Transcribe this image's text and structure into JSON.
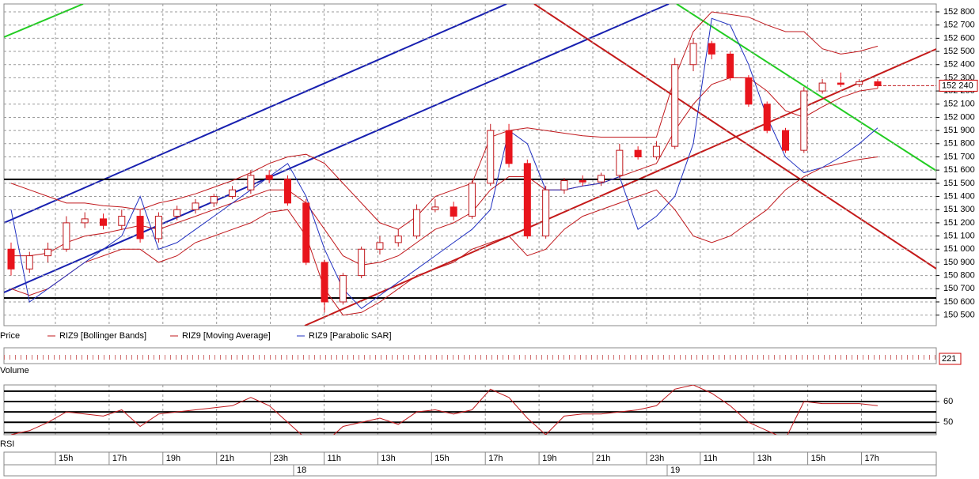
{
  "chart_data": [
    {
      "type": "candlestick",
      "title": "Price",
      "indicators": [
        "RIZ9 [Bollinger Bands]",
        "RIZ9 [Moving Average]",
        "RIZ9 [Parabolic SAR]"
      ],
      "categories": [
        null,
        null,
        null,
        null,
        null,
        null,
        null,
        null,
        null,
        null,
        null,
        null,
        null,
        null,
        null,
        null,
        null,
        null,
        null,
        null,
        null,
        null,
        null,
        null,
        null,
        null,
        null,
        null,
        null,
        null,
        null,
        null,
        null,
        null,
        null,
        null,
        null,
        null,
        null,
        null,
        null,
        null,
        null,
        null,
        null,
        null,
        null,
        null
      ],
      "open": [
        151000,
        150850,
        150950,
        151000,
        151200,
        151230,
        151180,
        151250,
        151080,
        151250,
        151300,
        151350,
        151400,
        151450,
        151560,
        151530,
        151350,
        150900,
        150600,
        150800,
        151000,
        151050,
        151100,
        151300,
        151320,
        151250,
        151500,
        151900,
        151650,
        151100,
        151450,
        151520,
        151510,
        151560,
        151750,
        151700,
        151780,
        152400,
        152560,
        152480,
        152300,
        152100,
        151900,
        151750,
        152200,
        152260,
        152250,
        152270
      ],
      "high": [
        151050,
        150980,
        151050,
        151250,
        151280,
        151270,
        151300,
        151300,
        151280,
        151330,
        151380,
        151420,
        151480,
        151600,
        151600,
        151560,
        151380,
        150920,
        150820,
        151020,
        151100,
        151150,
        151340,
        151380,
        151360,
        151520,
        151950,
        151950,
        151680,
        151480,
        151540,
        151560,
        151580,
        151800,
        151780,
        151820,
        152450,
        152600,
        152580,
        152500,
        152320,
        152120,
        151920,
        152230,
        152290,
        152340,
        152290,
        152290
      ],
      "low": [
        150800,
        150820,
        150900,
        150980,
        151160,
        151150,
        151150,
        151050,
        151050,
        151220,
        151270,
        151320,
        151380,
        151420,
        151500,
        151330,
        150880,
        150520,
        150580,
        150780,
        150960,
        151020,
        151080,
        151280,
        151220,
        151230,
        151480,
        151620,
        151080,
        151080,
        151420,
        151480,
        151480,
        151540,
        151680,
        151680,
        151760,
        152350,
        152440,
        152280,
        152080,
        151880,
        151730,
        151730,
        152180,
        152230,
        152230,
        152220
      ],
      "close": [
        150850,
        150950,
        151000,
        151200,
        151230,
        151180,
        151250,
        151080,
        151250,
        151300,
        151350,
        151400,
        151450,
        151560,
        151530,
        151350,
        150900,
        150600,
        150800,
        151000,
        151050,
        151100,
        151300,
        151320,
        151250,
        151500,
        151900,
        151650,
        151100,
        151450,
        151520,
        151510,
        151560,
        151750,
        151700,
        151780,
        152400,
        152560,
        152480,
        152300,
        152100,
        151900,
        151750,
        152200,
        152260,
        152250,
        152270,
        152240
      ],
      "bb_upper": [
        151500,
        151450,
        151400,
        151350,
        151350,
        151330,
        151320,
        151300,
        151350,
        151380,
        151420,
        151470,
        151520,
        151580,
        151650,
        151700,
        151720,
        151650,
        151500,
        151350,
        151200,
        151150,
        151250,
        151400,
        151450,
        151500,
        151850,
        151900,
        151920,
        151900,
        151880,
        151860,
        151850,
        151850,
        151850,
        151850,
        152300,
        152650,
        152800,
        152780,
        152760,
        152700,
        152650,
        152650,
        152520,
        152480,
        152500,
        152540
      ],
      "bb_lower": [
        150700,
        150650,
        150700,
        150800,
        150900,
        150950,
        151000,
        151000,
        150900,
        150950,
        151050,
        151100,
        151150,
        151200,
        151280,
        151300,
        151100,
        150700,
        150500,
        150520,
        150600,
        150700,
        150800,
        150850,
        150900,
        151000,
        151050,
        151100,
        150950,
        151000,
        151150,
        151250,
        151300,
        151350,
        151400,
        151450,
        151300,
        151100,
        151050,
        151100,
        151200,
        151300,
        151450,
        151550,
        151620,
        151650,
        151680,
        151700
      ],
      "ma": [
        150950,
        150950,
        150970,
        151050,
        151100,
        151120,
        151150,
        151180,
        151150,
        151200,
        151250,
        151300,
        151350,
        151400,
        151450,
        151450,
        151350,
        151150,
        150950,
        150880,
        150900,
        150950,
        151050,
        151150,
        151200,
        151280,
        151450,
        151550,
        151550,
        151450,
        151450,
        151480,
        151500,
        151550,
        151600,
        151650,
        151900,
        152100,
        152250,
        152300,
        152300,
        152200,
        152050,
        152000,
        152080,
        152150,
        152200,
        152220
      ],
      "sar": [
        151300,
        150600,
        150700,
        150800,
        150900,
        151000,
        151100,
        151400,
        151000,
        151050,
        151150,
        151250,
        151350,
        151450,
        151550,
        151650,
        151400,
        151000,
        150700,
        150550,
        150650,
        150750,
        150850,
        150950,
        151050,
        151150,
        151300,
        151900,
        151800,
        151450,
        151450,
        151480,
        151500,
        151550,
        151150,
        151250,
        151400,
        151800,
        152750,
        152700,
        152400,
        152000,
        151700,
        151580,
        151620,
        151700,
        151800,
        151920
      ],
      "up_color": "#ffffff",
      "down_color": "#e8141c",
      "band_color": "#c0181c",
      "sar_color": "#2030c0",
      "horizontal_lines": [
        151530,
        150630
      ],
      "last_price": {
        "value": 152240,
        "label": "152 240"
      },
      "ylim": [
        150420,
        152860
      ],
      "yticks": [
        {
          "value": 150500,
          "label": "150 500"
        },
        {
          "value": 150600,
          "label": "150 600"
        },
        {
          "value": 150700,
          "label": "150 700"
        },
        {
          "value": 150800,
          "label": "150 800"
        },
        {
          "value": 150900,
          "label": "150 900"
        },
        {
          "value": 151000,
          "label": "151 000"
        },
        {
          "value": 151100,
          "label": "151 100"
        },
        {
          "value": 151200,
          "label": "151 200"
        },
        {
          "value": 151300,
          "label": "151 300"
        },
        {
          "value": 151400,
          "label": "151 400"
        },
        {
          "value": 151500,
          "label": "151 500"
        },
        {
          "value": 151600,
          "label": "151 600"
        },
        {
          "value": 151700,
          "label": "151 700"
        },
        {
          "value": 151800,
          "label": "151 800"
        },
        {
          "value": 151900,
          "label": "151 900"
        },
        {
          "value": 152000,
          "label": "152 000"
        },
        {
          "value": 152100,
          "label": "152 100"
        },
        {
          "value": 152200,
          "label": "152 200"
        },
        {
          "value": 152300,
          "label": "152 300"
        },
        {
          "value": 152400,
          "label": "152 400"
        },
        {
          "value": 152500,
          "label": "152 500"
        },
        {
          "value": 152600,
          "label": "152 600"
        },
        {
          "value": 152700,
          "label": "152 700"
        },
        {
          "value": 152800,
          "label": "152 800"
        }
      ],
      "grid": true
    },
    {
      "type": "volume",
      "title": "Volume",
      "last_value": 221
    },
    {
      "type": "line",
      "title": "RSI",
      "color": "#c0181c",
      "values": [
        44,
        46,
        50,
        55,
        54,
        53,
        56,
        48,
        54,
        55,
        56,
        57,
        58,
        62,
        58,
        50,
        42,
        40,
        48,
        50,
        52,
        49,
        55,
        56,
        54,
        56,
        66,
        62,
        52,
        44,
        53,
        54,
        54,
        55,
        56,
        58,
        66,
        68,
        64,
        58,
        50,
        46,
        42,
        60,
        59,
        59,
        59,
        58
      ],
      "levels": [
        65,
        60,
        55,
        50,
        45
      ],
      "ylim": [
        44,
        68
      ],
      "yticks": [
        50,
        60
      ]
    }
  ],
  "time_axis": {
    "hours": [
      "15h",
      "17h",
      "19h",
      "21h",
      "23h",
      "11h",
      "13h",
      "15h",
      "17h",
      "19h",
      "21h",
      "23h",
      "11h",
      "13h",
      "15h",
      "17h"
    ],
    "dates": [
      "18",
      "19"
    ]
  }
}
